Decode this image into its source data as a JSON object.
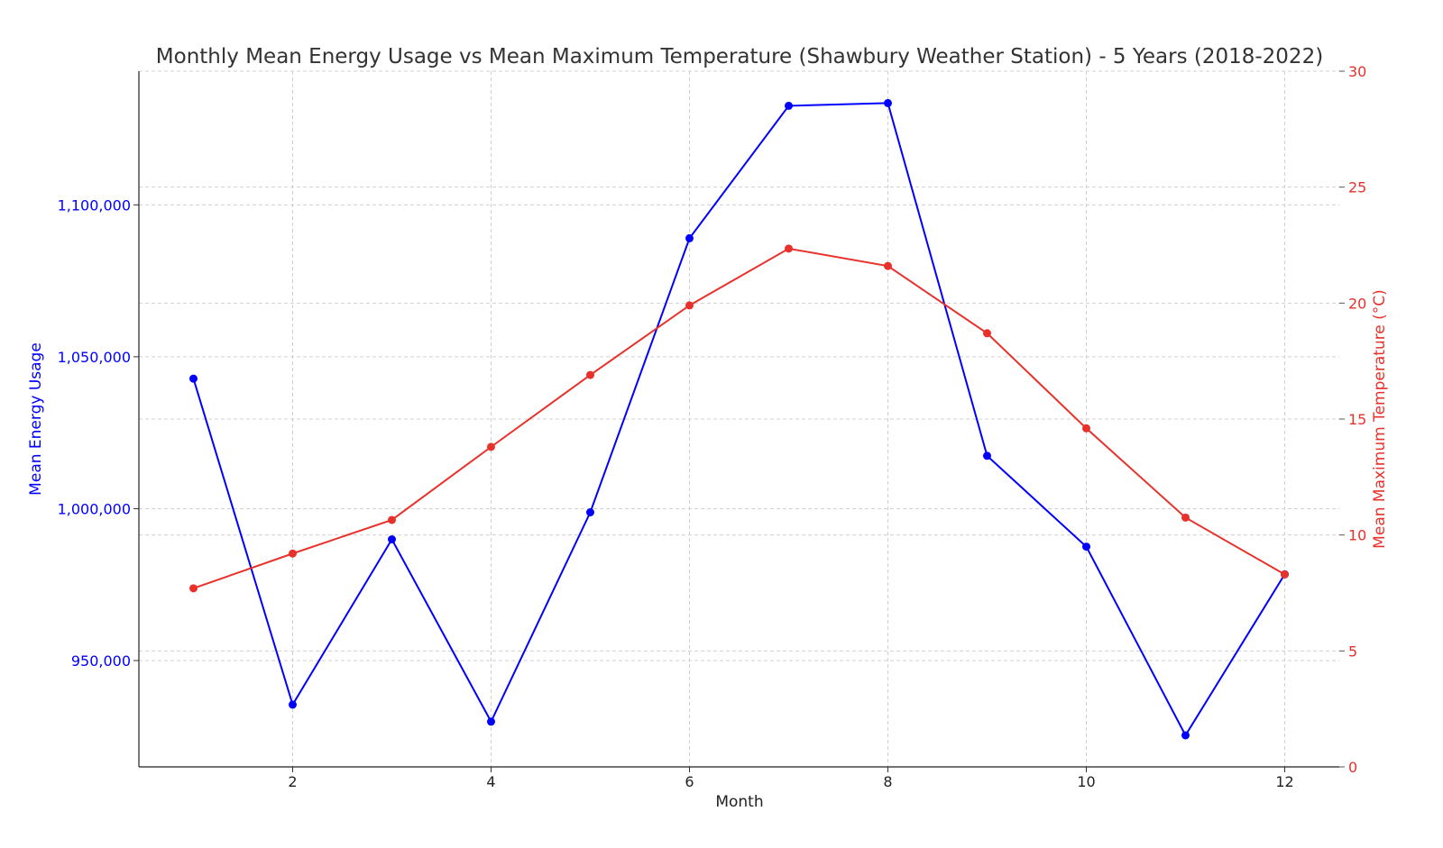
{
  "chart_data": {
    "type": "line",
    "title": "Monthly Mean Energy Usage vs Mean Maximum Temperature (Shawbury Weather Station) - 5 Years (2018-2022)",
    "xlabel": "Month",
    "ylabel_left": "Mean Energy Usage",
    "ylabel_right": "Mean Maximum Temperature (°C)",
    "x": [
      1,
      2,
      3,
      4,
      5,
      6,
      7,
      8,
      9,
      10,
      11,
      12
    ],
    "xlim": [
      0.45,
      12.55
    ],
    "x_ticks": [
      2,
      4,
      6,
      8,
      10,
      12
    ],
    "x_tick_labels": [
      "2",
      "4",
      "6",
      "8",
      "10",
      "12"
    ],
    "ylim_left": [
      915000,
      1144000
    ],
    "y_ticks_left": [
      950000,
      1000000,
      1050000,
      1100000
    ],
    "y_tick_labels_left": [
      "950,000",
      "1,000,000",
      "1,050,000",
      "1,100,000"
    ],
    "ylim_right": [
      0,
      30
    ],
    "y_ticks_right": [
      0,
      5,
      10,
      15,
      20,
      25,
      30
    ],
    "y_tick_labels_right": [
      "0",
      "5",
      "10",
      "15",
      "20",
      "25",
      "30"
    ],
    "grid": true,
    "series": [
      {
        "name": "Mean Energy Usage",
        "axis": "left",
        "color": "#0000ff",
        "values": [
          1042800,
          935500,
          989900,
          929900,
          998800,
          1089000,
          1132600,
          1133500,
          1017400,
          987500,
          925400,
          978400
        ]
      },
      {
        "name": "Mean Maximum Temperature",
        "axis": "right",
        "color": "#e8312a",
        "values": [
          7.7,
          9.2,
          10.65,
          13.8,
          16.9,
          19.9,
          22.35,
          21.6,
          18.7,
          14.6,
          10.75,
          8.3
        ]
      }
    ]
  }
}
